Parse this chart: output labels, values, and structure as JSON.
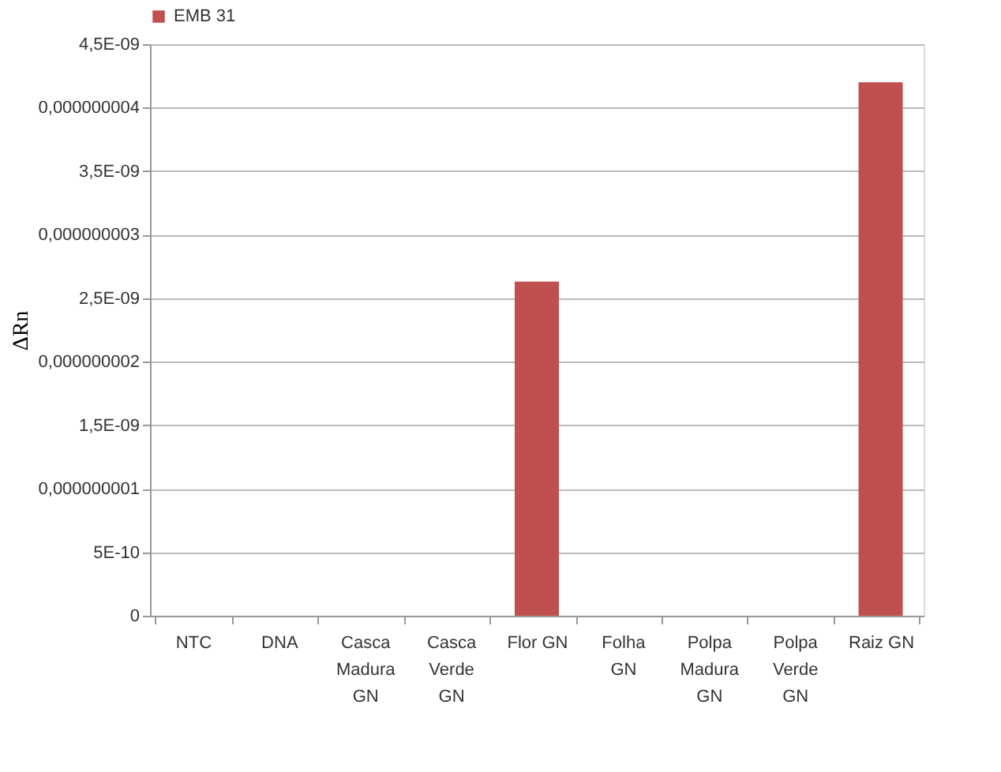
{
  "chart_data": {
    "type": "bar",
    "ylabel": "ΔRn",
    "categories": [
      "NTC",
      "DNA",
      "Casca Madura GN",
      "Casca Verde GN",
      "Flor GN",
      "Folha GN",
      "Polpa Madura GN",
      "Polpa Verde GN",
      "Raiz GN"
    ],
    "series": [
      {
        "name": "EMB 31",
        "color": "#c0504d",
        "values": [
          0,
          0,
          0,
          0,
          2.63e-09,
          0,
          0,
          0,
          4.2e-09
        ]
      }
    ],
    "ylim": [
      0,
      4.5e-09
    ],
    "yticks": [
      0,
      {
        "value": 5e-10,
        "label": "5E-10"
      },
      {
        "value": 1e-09,
        "label": "0,000000001"
      },
      {
        "value": 1.5e-09,
        "label": "1,5E-09"
      },
      {
        "value": 2e-09,
        "label": "0,000000002"
      },
      {
        "value": 2.5e-09,
        "label": "2,5E-09"
      },
      {
        "value": 3e-09,
        "label": "0,000000003"
      },
      {
        "value": 3.5e-09,
        "label": "3,5E-09"
      },
      {
        "value": 4e-09,
        "label": "0,000000004"
      },
      {
        "value": 4.5e-09,
        "label": "4,5E-09"
      }
    ],
    "grid": "y",
    "legend": "top left"
  }
}
